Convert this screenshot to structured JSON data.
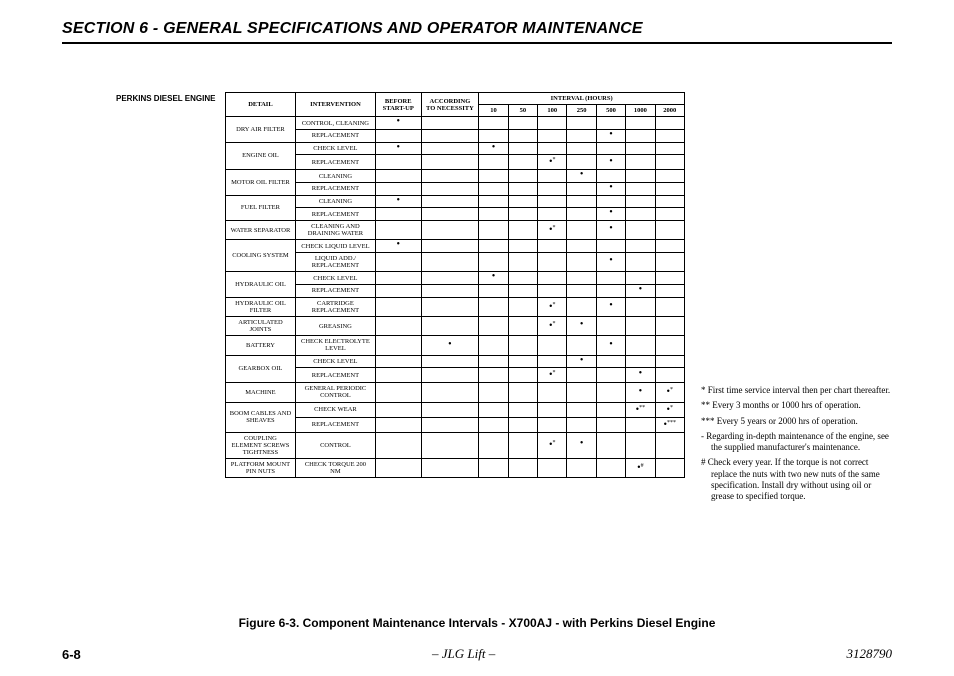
{
  "header": {
    "section_title": "SECTION 6 - GENERAL SPECIFICATIONS AND OPERATOR MAINTENANCE",
    "engine_label": "PERKINS DIESEL ENGINE"
  },
  "table": {
    "head": {
      "detail": "DETAIL",
      "intervention": "INTERVENTION",
      "before": "BEFORE START-UP",
      "according": "ACCORDING TO NECESSITY",
      "interval": "INTERVAL (HOURS)",
      "hours": [
        "10",
        "50",
        "100",
        "250",
        "500",
        "1000",
        "2000"
      ]
    },
    "rows": [
      {
        "detail": "DRY AIR FILTER",
        "span": 2,
        "intervention": "CONTROL, CLEANING",
        "marks": {
          "before": "•"
        }
      },
      {
        "intervention": "REPLACEMENT",
        "marks": {
          "500": "•"
        }
      },
      {
        "detail": "ENGINE OIL",
        "span": 2,
        "intervention": "CHECK LEVEL",
        "marks": {
          "before": "•",
          "10": "•"
        }
      },
      {
        "intervention": "REPLACEMENT",
        "marks": {
          "100": "•*",
          "500": "•"
        }
      },
      {
        "detail": "MOTOR OIL FILTER",
        "span": 2,
        "intervention": "CLEANING",
        "marks": {
          "250": "•"
        }
      },
      {
        "intervention": "REPLACEMENT",
        "marks": {
          "500": "•"
        }
      },
      {
        "detail": "FUEL FILTER",
        "span": 2,
        "intervention": "CLEANING",
        "marks": {
          "before": "•"
        }
      },
      {
        "intervention": "REPLACEMENT",
        "marks": {
          "500": "•"
        }
      },
      {
        "detail": "WATER SEPARATOR",
        "span": 1,
        "intervention": "CLEANING AND DRAINING WATER",
        "marks": {
          "100": "•*",
          "500": "•"
        }
      },
      {
        "detail": "COOLING SYSTEM",
        "span": 2,
        "intervention": "CHECK LIQUID LEVEL",
        "marks": {
          "before": "•"
        }
      },
      {
        "intervention": "LIQUID ADD./ REPLACEMENT",
        "marks": {
          "500": "•"
        }
      },
      {
        "detail": "HYDRAULIC OIL",
        "span": 2,
        "intervention": "CHECK LEVEL",
        "marks": {
          "10": "•"
        }
      },
      {
        "intervention": "REPLACEMENT",
        "marks": {
          "1000": "•"
        }
      },
      {
        "detail": "HYDRAULIC OIL FILTER",
        "span": 1,
        "intervention": "CARTRIDGE REPLACEMENT",
        "marks": {
          "100": "•*",
          "500": "•"
        }
      },
      {
        "detail": "ARTICULATED JOINTS",
        "span": 1,
        "intervention": "GREASING",
        "marks": {
          "100": "•*",
          "250": "•"
        }
      },
      {
        "detail": "BATTERY",
        "span": 1,
        "intervention": "CHECK ELECTROLYTE LEVEL",
        "marks": {
          "according": "•",
          "500": "•"
        }
      },
      {
        "detail": "GEARBOX OIL",
        "span": 2,
        "intervention": "CHECK LEVEL",
        "marks": {
          "250": "•"
        }
      },
      {
        "intervention": "REPLACEMENT",
        "marks": {
          "100": "•*",
          "1000": "•"
        }
      },
      {
        "detail": "MACHINE",
        "span": 1,
        "intervention": "GENERAL PERIODIC CONTROL",
        "marks": {
          "1000": "•",
          "2000": "•*"
        }
      },
      {
        "detail": "BOOM CABLES AND SHEAVES",
        "span": 2,
        "intervention": "CHECK WEAR",
        "marks": {
          "1000": "•**",
          "2000": "•*"
        }
      },
      {
        "intervention": "REPLACEMENT",
        "marks": {
          "2000": "•***"
        }
      },
      {
        "detail": "COUPLING ELEMENT SCREWS TIGHTNESS",
        "span": 1,
        "intervention": "CONTROL",
        "marks": {
          "100": "•*",
          "250": "•"
        }
      },
      {
        "detail": "PLATFORM MOUNT PIN NUTS",
        "span": 1,
        "intervention": "CHECK TORQUE 200 Nm",
        "marks": {
          "1000": "•#"
        }
      }
    ]
  },
  "notes": {
    "n1": "* First time service interval then per chart thereafter.",
    "n2": "** Every 3 months or 1000 hrs of operation.",
    "n3": "*** Every 5 years or 2000 hrs of operation.",
    "n4": "- Regarding in-depth maintenance of the engine, see the supplied manufacturer's maintenance.",
    "n5": "# Check every year. If the torque is not correct replace the nuts with two new nuts of the same specification. Install dry without using oil or grease to specified torque."
  },
  "caption": "Figure 6-3. Component Maintenance Intervals - X700AJ - with  Perkins Diesel Engine",
  "footer": {
    "page": "6-8",
    "center": "– JLG Lift –",
    "doc": "3128790"
  }
}
